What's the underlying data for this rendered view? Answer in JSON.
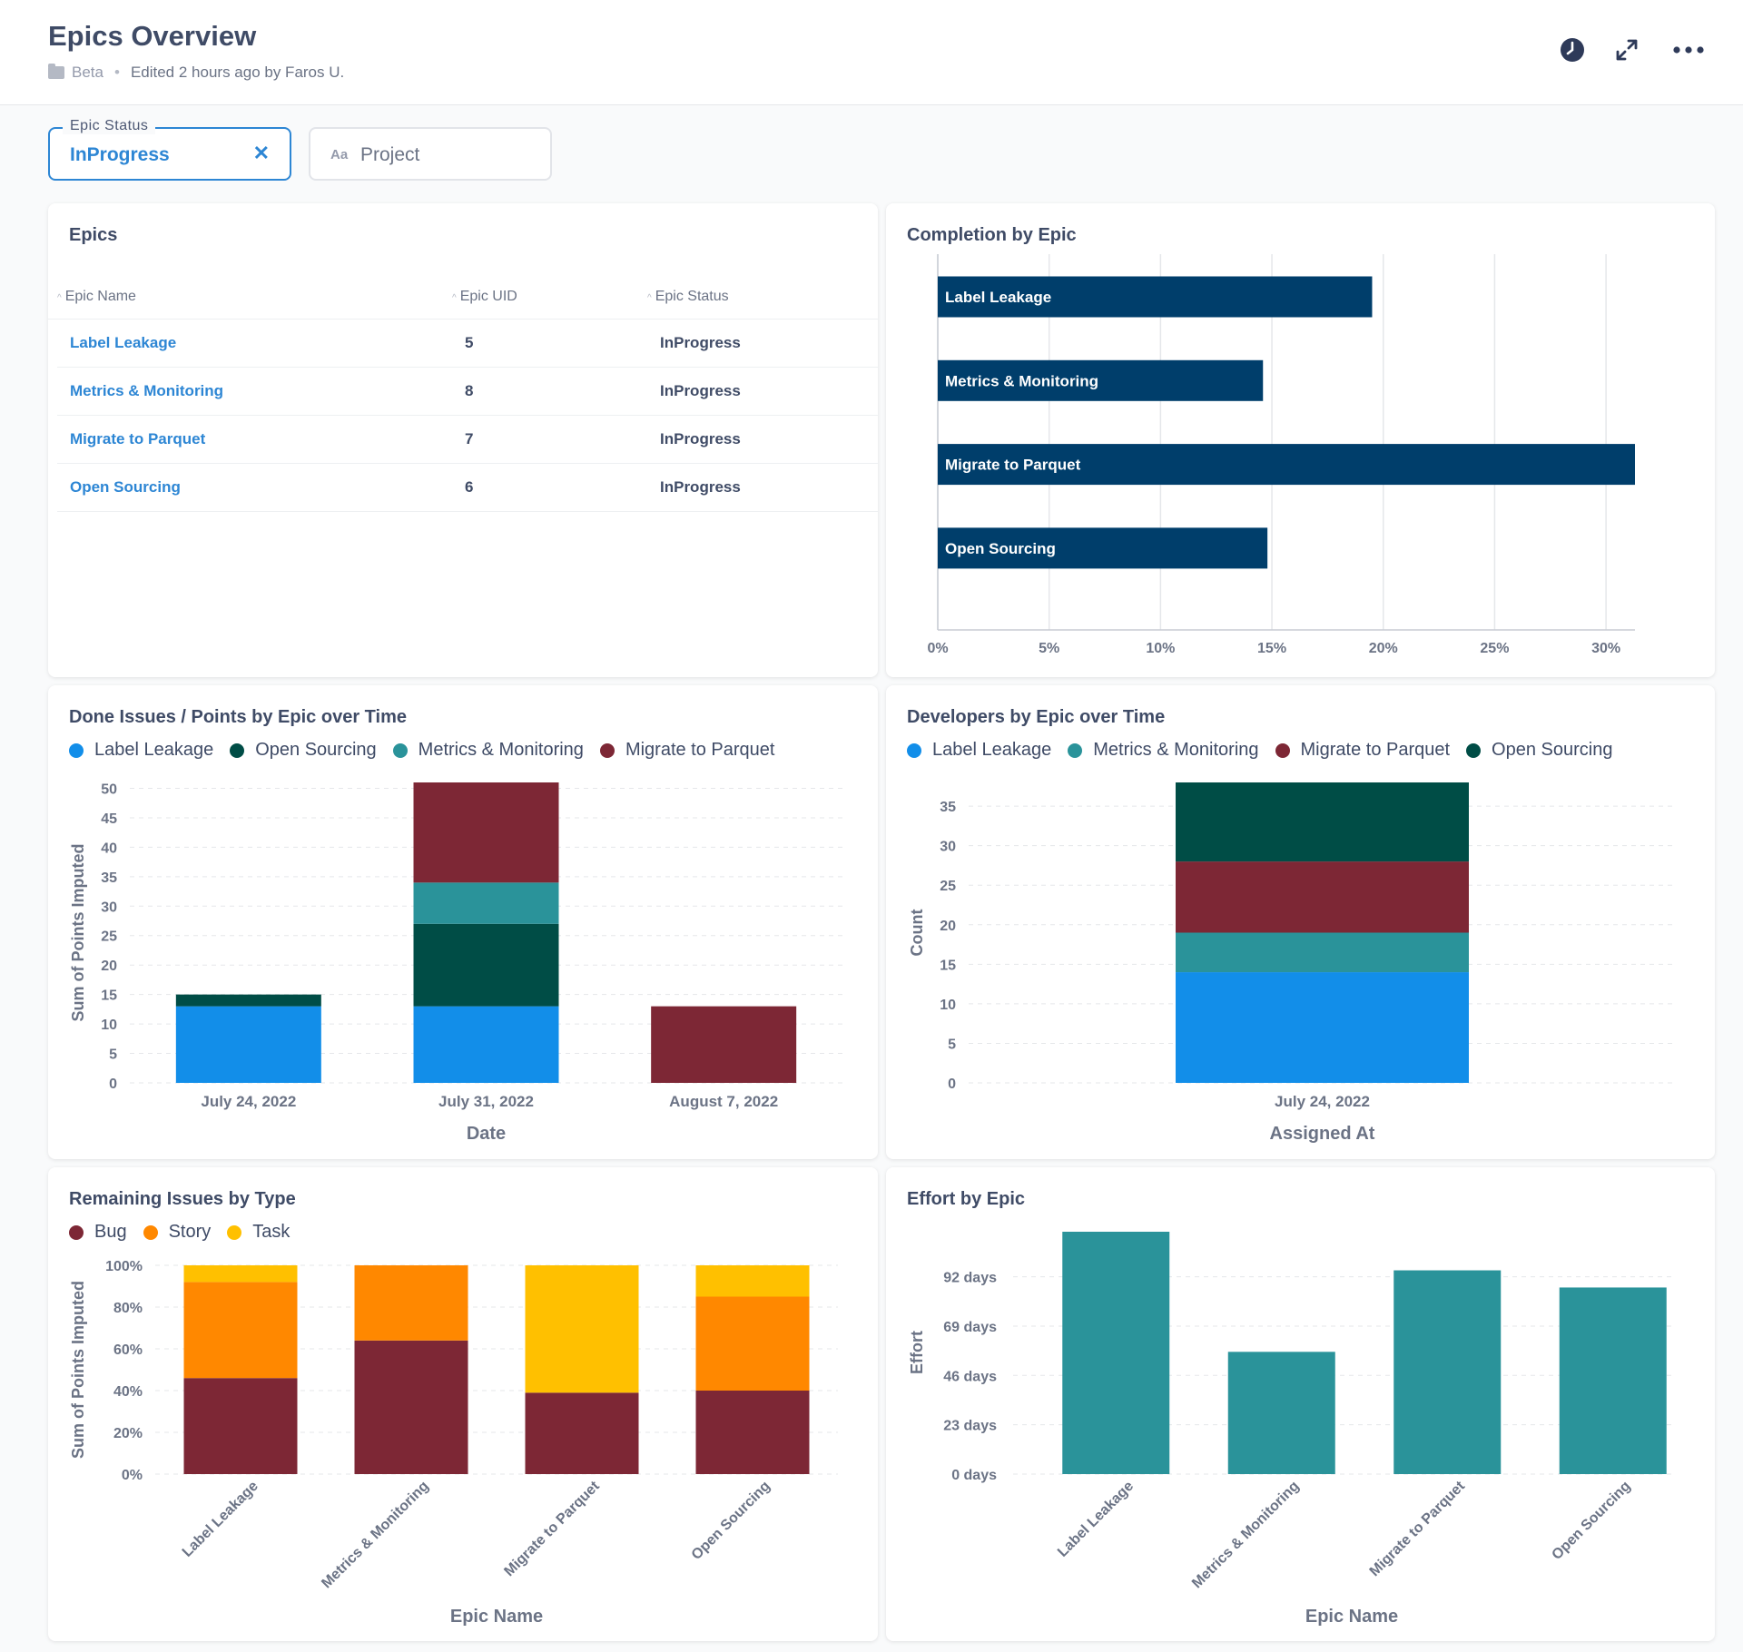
{
  "header": {
    "title": "Epics Overview",
    "collection": "Beta",
    "edited": "Edited 2 hours ago by Faros U."
  },
  "icons": [
    "folder-icon",
    "clock-icon",
    "expand-icon",
    "more-icon",
    "close-icon",
    "text-type-icon"
  ],
  "filters": [
    {
      "label": "Epic Status",
      "value": "InProgress"
    },
    {
      "type_glyph": "Aa",
      "placeholder": "Project"
    }
  ],
  "epics_table": {
    "title": "Epics",
    "columns": [
      "Epic Name",
      "Epic UID",
      "Epic Status"
    ],
    "rows": [
      [
        "Label Leakage",
        "5",
        "InProgress"
      ],
      [
        "Metrics & Monitoring",
        "8",
        "InProgress"
      ],
      [
        "Migrate to Parquet",
        "7",
        "InProgress"
      ],
      [
        "Open Sourcing",
        "6",
        "InProgress"
      ]
    ]
  },
  "chart_data": [
    {
      "title": "Completion by Epic",
      "type": "bar",
      "orientation": "horizontal",
      "categories": [
        "Label Leakage",
        "Metrics & Monitoring",
        "Migrate to Parquet",
        "Open Sourcing"
      ],
      "values": [
        19.5,
        14.6,
        31.3,
        14.8
      ],
      "xticks": [
        "0%",
        "5%",
        "10%",
        "15%",
        "20%",
        "25%",
        "30%"
      ],
      "xlim": [
        0,
        31.3
      ],
      "color": "#003e6b",
      "grid": true
    },
    {
      "title": "Done Issues / Points by Epic over Time",
      "type": "bar",
      "stacked": true,
      "categories": [
        "July 24, 2022",
        "July 31, 2022",
        "August 7, 2022"
      ],
      "series": [
        {
          "name": "Label Leakage",
          "color": "#128ee9",
          "values": [
            13,
            13,
            0
          ]
        },
        {
          "name": "Open Sourcing",
          "color": "#004d46",
          "values": [
            2,
            14,
            0
          ]
        },
        {
          "name": "Metrics & Monitoring",
          "color": "#2a939a",
          "values": [
            0,
            7,
            0
          ]
        },
        {
          "name": "Migrate to Parquet",
          "color": "#7d2735",
          "values": [
            0,
            17,
            13
          ]
        }
      ],
      "xlabel": "Date",
      "ylabel": "Sum of Points Imputed",
      "yticks": [
        "0",
        "5",
        "10",
        "15",
        "20",
        "25",
        "30",
        "35",
        "40",
        "45",
        "50"
      ],
      "ylim": [
        0,
        51
      ],
      "legend_position": "top"
    },
    {
      "title": "Developers by Epic over Time",
      "type": "bar",
      "stacked": true,
      "categories": [
        "July 24, 2022"
      ],
      "series": [
        {
          "name": "Label Leakage",
          "color": "#128ee9",
          "values": [
            14
          ]
        },
        {
          "name": "Metrics & Monitoring",
          "color": "#2a939a",
          "values": [
            5
          ]
        },
        {
          "name": "Migrate to Parquet",
          "color": "#7d2735",
          "values": [
            9
          ]
        },
        {
          "name": "Open Sourcing",
          "color": "#004d46",
          "values": [
            10
          ]
        }
      ],
      "xlabel": "Assigned At",
      "ylabel": "Count",
      "yticks": [
        "0",
        "5",
        "10",
        "15",
        "20",
        "25",
        "30",
        "35"
      ],
      "ylim": [
        0,
        38
      ],
      "legend_position": "top"
    },
    {
      "title": "Remaining Issues by Type",
      "type": "bar",
      "stacked": true,
      "normalized": true,
      "categories": [
        "Label Leakage",
        "Metrics & Monitoring",
        "Migrate to Parquet",
        "Open Sourcing"
      ],
      "series": [
        {
          "name": "Bug",
          "color": "#7d2735",
          "values": [
            46,
            64,
            39,
            40
          ]
        },
        {
          "name": "Story",
          "color": "#ff8800",
          "values": [
            46,
            36,
            0,
            45
          ]
        },
        {
          "name": "Task",
          "color": "#ffc000",
          "values": [
            8,
            0,
            61,
            15
          ]
        }
      ],
      "xlabel": "Epic Name",
      "ylabel": "Sum of Points Imputed",
      "yticks": [
        "0%",
        "20%",
        "40%",
        "60%",
        "80%",
        "100%"
      ],
      "ylim": [
        0,
        100
      ],
      "legend_position": "top"
    },
    {
      "title": "Effort by Epic",
      "type": "bar",
      "categories": [
        "Label Leakage",
        "Metrics & Monitoring",
        "Migrate to Parquet",
        "Open Sourcing"
      ],
      "values": [
        113,
        57,
        95,
        87
      ],
      "unit": "days",
      "color": "#2a939a",
      "xlabel": "Epic Name",
      "ylabel": "Effort",
      "yticks": [
        {
          "v": 0,
          "t": "0 days"
        },
        {
          "v": 23,
          "t": "23 days"
        },
        {
          "v": 46,
          "t": "46 days"
        },
        {
          "v": 69,
          "t": "69 days"
        },
        {
          "v": 92,
          "t": "92 days"
        }
      ],
      "ylim": [
        0,
        113
      ]
    }
  ]
}
